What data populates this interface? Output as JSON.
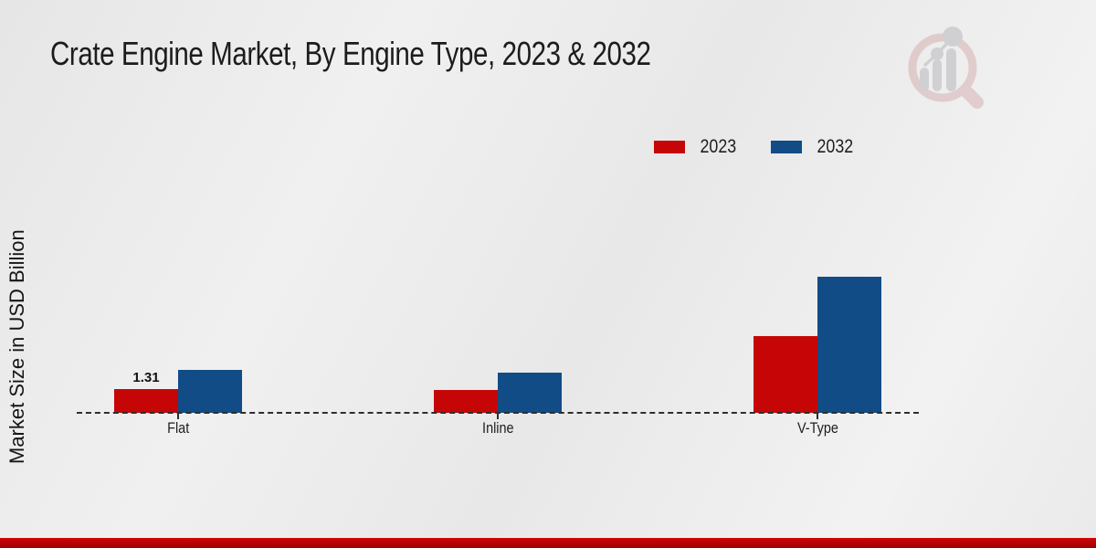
{
  "header": {
    "title": "Crate Engine Market, By Engine Type, 2023 & 2032"
  },
  "watermark": {
    "icon": "magnifier-bar-chart-logo",
    "ring_color": "#d8a8a8",
    "bars_color": "#a9a9af"
  },
  "footer": {
    "bar_color": "#b50505"
  },
  "chart_data": {
    "type": "bar",
    "title": "Crate Engine Market, By Engine Type, 2023 & 2032",
    "ylabel": "Market Size in USD Billion",
    "xlabel": "",
    "categories": [
      "Flat",
      "Inline",
      "V-Type"
    ],
    "series": [
      {
        "name": "2023",
        "color": "#c60606",
        "values": [
          1.31,
          1.23,
          4.18
        ]
      },
      {
        "name": "2032",
        "color": "#114c86",
        "values": [
          2.33,
          2.18,
          7.42
        ]
      }
    ],
    "shown_value_labels": [
      {
        "category": "Flat",
        "series": "2023",
        "text": "1.31"
      }
    ],
    "ylim": [
      0,
      8
    ],
    "grid": false,
    "axis_style": "dashed-baseline-only",
    "legend_position": "top-right"
  }
}
